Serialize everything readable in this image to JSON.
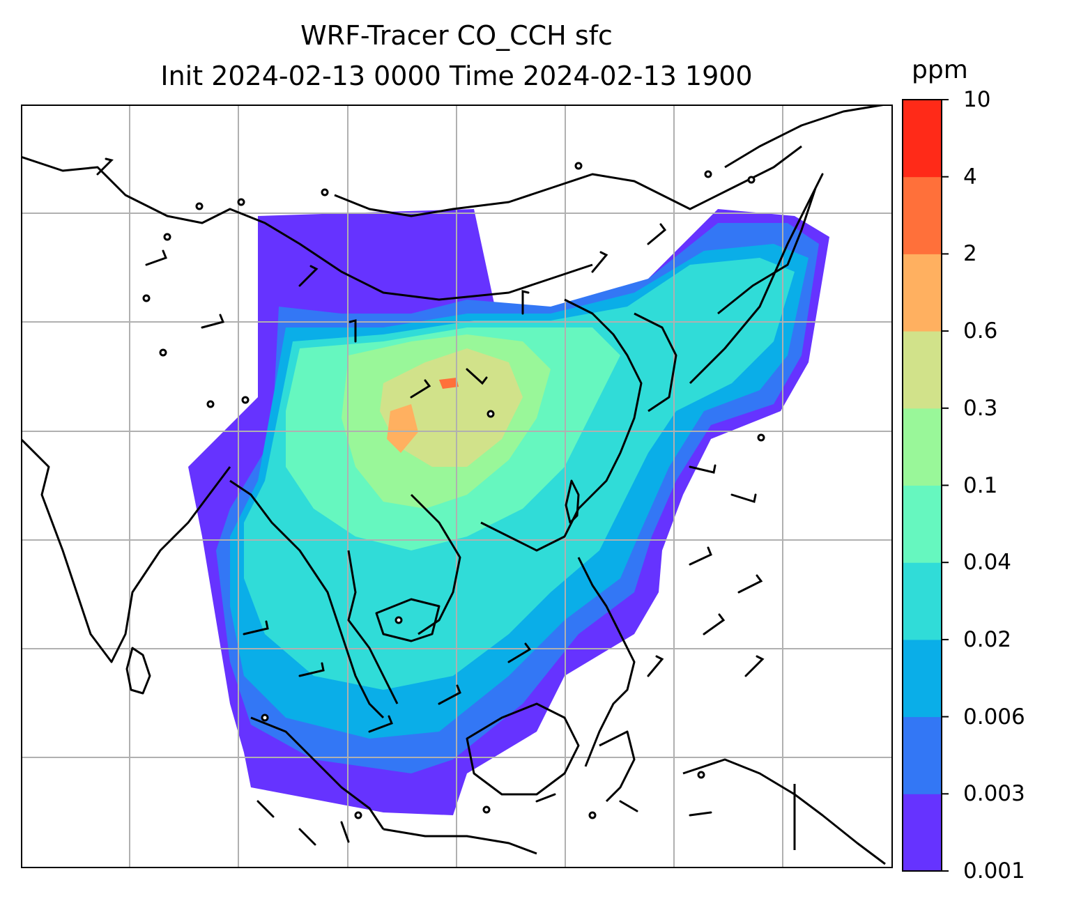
{
  "title": {
    "line1": "WRF-Tracer CO_CCH sfc",
    "line2": "Init 2024-02-13 0000 Time 2024-02-13 1900"
  },
  "colorbar": {
    "unit": "ppm",
    "levels": [
      "0.001",
      "0.003",
      "0.006",
      "0.02",
      "0.04",
      "0.1",
      "0.3",
      "0.6",
      "2",
      "4",
      "10"
    ],
    "colors": [
      "#6633ff",
      "#3377f5",
      "#0aaee8",
      "#30dcd8",
      "#66f7bf",
      "#99f799",
      "#d1e28a",
      "#ffb060",
      "#ff703a",
      "#ff2a18"
    ]
  },
  "map": {
    "projection": "lat-lon grid",
    "gridlines": true,
    "features": [
      "coastlines",
      "country-borders",
      "wind-barbs"
    ]
  }
}
